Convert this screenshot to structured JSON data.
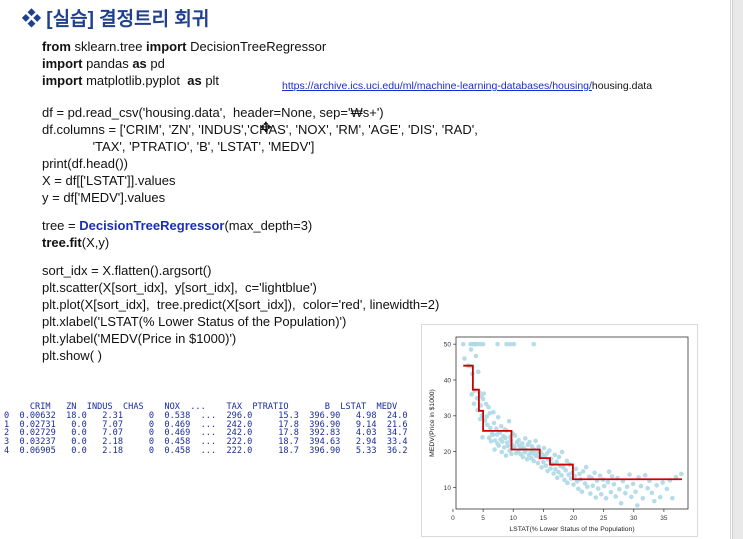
{
  "title": "❖ [실습] 결정트리 회귀",
  "code_lines": [
    {
      "segments": [
        {
          "t": "from",
          "k": "kw"
        },
        {
          "t": " sklearn.tree ",
          "k": ""
        },
        {
          "t": "import",
          "k": "kw"
        },
        {
          "t": " DecisionTreeRegressor",
          "k": ""
        }
      ]
    },
    {
      "segments": [
        {
          "t": "import",
          "k": "kw"
        },
        {
          "t": " pandas ",
          "k": ""
        },
        {
          "t": "as",
          "k": "kw"
        },
        {
          "t": " pd",
          "k": ""
        }
      ]
    },
    {
      "segments": [
        {
          "t": "import",
          "k": "kw"
        },
        {
          "t": " matplotlib.pyplot  ",
          "k": ""
        },
        {
          "t": "as",
          "k": "kw"
        },
        {
          "t": " plt",
          "k": ""
        }
      ]
    },
    {
      "segments": [
        {
          "t": "",
          "k": ""
        }
      ]
    },
    {
      "segments": [
        {
          "t": "df = pd.read_csv('housing.data',  header=None, sep='₩s+')",
          "k": ""
        }
      ]
    },
    {
      "segments": [
        {
          "t": "df.columns = ['CRIM', 'ZN', 'INDUS','CHAS', 'NOX', 'RM', 'AGE', 'DIS', 'RAD',",
          "k": ""
        }
      ]
    },
    {
      "segments": [
        {
          "t": "              'TAX', 'PTRATIO', 'B', 'LSTAT', 'MEDV']",
          "k": ""
        }
      ]
    },
    {
      "segments": [
        {
          "t": "print(df.head())",
          "k": ""
        }
      ]
    },
    {
      "segments": [
        {
          "t": "X = df[['LSTAT']].values",
          "k": ""
        }
      ]
    },
    {
      "segments": [
        {
          "t": "y = df['MEDV'].values",
          "k": ""
        }
      ]
    },
    {
      "segments": [
        {
          "t": "",
          "k": ""
        }
      ]
    },
    {
      "segments": [
        {
          "t": "tree = ",
          "k": ""
        },
        {
          "t": "DecisionTreeRegressor",
          "k": "hl"
        },
        {
          "t": "(max_depth=3)",
          "k": ""
        }
      ]
    },
    {
      "segments": [
        {
          "t": "tree.fit",
          "k": "kw"
        },
        {
          "t": "(X,y)",
          "k": ""
        }
      ]
    },
    {
      "segments": [
        {
          "t": "",
          "k": ""
        }
      ]
    },
    {
      "segments": [
        {
          "t": "sort_idx = X.flatten().argsort()",
          "k": ""
        }
      ]
    },
    {
      "segments": [
        {
          "t": "plt.scatter(X[sort_idx],  y[sort_idx],  c='lightblue')",
          "k": ""
        }
      ]
    },
    {
      "segments": [
        {
          "t": "plt.plot(X[sort_idx],  tree.predict(X[sort_idx]),  color='red', linewidth=2)",
          "k": ""
        }
      ]
    },
    {
      "segments": [
        {
          "t": "plt.xlabel('LSTAT(% Lower Status of the Population)')",
          "k": ""
        }
      ]
    },
    {
      "segments": [
        {
          "t": "plt.ylabel('MEDV(Price in $1000)')",
          "k": ""
        }
      ]
    },
    {
      "segments": [
        {
          "t": "plt.show( )",
          "k": ""
        }
      ]
    }
  ],
  "url": {
    "link": "https://archive.ics.uci.edu/ml/machine-learning-databases/housing/",
    "tail": "housing.data"
  },
  "df_head": {
    "header": "     CRIM   ZN  INDUS  CHAS    NOX  ...    TAX  PTRATIO       B  LSTAT  MEDV",
    "rows": [
      "0  0.00632  18.0   2.31     0  0.538  ...  296.0     15.3  396.90   4.98  24.0",
      "1  0.02731   0.0   7.07     0  0.469  ...  242.0     17.8  396.90   9.14  21.6",
      "2  0.02729   0.0   7.07     0  0.469  ...  242.0     17.8  392.83   4.03  34.7",
      "3  0.03237   0.0   2.18     0  0.458  ...  222.0     18.7  394.63   2.94  33.4",
      "4  0.06905   0.0   2.18     0  0.458  ...  222.0     18.7  396.90   5.33  36.2"
    ]
  },
  "chart_data": {
    "type": "scatter",
    "xlabel": "LSTAT(% Lower Status of the Population)",
    "ylabel": "MEDV(Price in $1000)",
    "xlim": [
      0.5,
      39
    ],
    "ylim": [
      4,
      52
    ],
    "xticks": [
      0,
      5,
      10,
      15,
      20,
      25,
      30,
      35
    ],
    "yticks": [
      10,
      20,
      30,
      40,
      50
    ],
    "grid": false,
    "scatter_color": "#add8e6",
    "line_color": "#cc0000",
    "scatter_series": {
      "points": [
        [
          1.7,
          50
        ],
        [
          2.9,
          50
        ],
        [
          3.3,
          50
        ],
        [
          3.5,
          50
        ],
        [
          3.7,
          50
        ],
        [
          4.0,
          50
        ],
        [
          4.5,
          50
        ],
        [
          5.0,
          50
        ],
        [
          7.4,
          50
        ],
        [
          8.9,
          50
        ],
        [
          9.5,
          50
        ],
        [
          10.1,
          50
        ],
        [
          13.4,
          50
        ],
        [
          1.9,
          46
        ],
        [
          2.5,
          44
        ],
        [
          2.9,
          43.8
        ],
        [
          3.0,
          48.5
        ],
        [
          3.1,
          36
        ],
        [
          3.2,
          41.7
        ],
        [
          3.5,
          33.4
        ],
        [
          3.6,
          37
        ],
        [
          3.8,
          46.7
        ],
        [
          4.0,
          34.9
        ],
        [
          4.1,
          31.6
        ],
        [
          4.2,
          42.3
        ],
        [
          4.4,
          36.5
        ],
        [
          4.5,
          29.1
        ],
        [
          4.6,
          32.9
        ],
        [
          4.7,
          35.4
        ],
        [
          4.8,
          30.1
        ],
        [
          4.9,
          24
        ],
        [
          5.0,
          34.7
        ],
        [
          5.1,
          36.2
        ],
        [
          5.3,
          28.7
        ],
        [
          5.5,
          33.3
        ],
        [
          5.6,
          29.8
        ],
        [
          5.7,
          27.5
        ],
        [
          5.9,
          32.4
        ],
        [
          6.0,
          23.9
        ],
        [
          6.1,
          30.7
        ],
        [
          6.2,
          26.6
        ],
        [
          6.3,
          22.9
        ],
        [
          6.5,
          25
        ],
        [
          6.6,
          24.7
        ],
        [
          6.7,
          31
        ],
        [
          6.8,
          28
        ],
        [
          6.9,
          20.6
        ],
        [
          7.0,
          23.1
        ],
        [
          7.2,
          26.4
        ],
        [
          7.3,
          24.8
        ],
        [
          7.4,
          22.2
        ],
        [
          7.5,
          29.6
        ],
        [
          7.6,
          21.7
        ],
        [
          7.8,
          25.3
        ],
        [
          7.9,
          23.4
        ],
        [
          8.0,
          27.1
        ],
        [
          8.1,
          19.9
        ],
        [
          8.2,
          22.8
        ],
        [
          8.4,
          24.3
        ],
        [
          8.5,
          21.2
        ],
        [
          8.6,
          26.2
        ],
        [
          8.7,
          23.8
        ],
        [
          8.8,
          18.9
        ],
        [
          8.9,
          25.9
        ],
        [
          9.0,
          22.5
        ],
        [
          9.1,
          21.6
        ],
        [
          9.3,
          28.5
        ],
        [
          9.4,
          20.3
        ],
        [
          9.5,
          24.1
        ],
        [
          9.6,
          23.1
        ],
        [
          9.7,
          19.4
        ],
        [
          9.8,
          22
        ],
        [
          9.9,
          25.1
        ],
        [
          10.0,
          20.9
        ],
        [
          10.2,
          21.4
        ],
        [
          10.3,
          24.5
        ],
        [
          10.5,
          19.6
        ],
        [
          10.6,
          22.6
        ],
        [
          10.8,
          20.2
        ],
        [
          10.9,
          23.2
        ],
        [
          11.0,
          21.7
        ],
        [
          11.2,
          19.3
        ],
        [
          11.3,
          20.8
        ],
        [
          11.5,
          22.3
        ],
        [
          11.6,
          18.5
        ],
        [
          11.7,
          21.1
        ],
        [
          11.9,
          19.8
        ],
        [
          12.0,
          23.7
        ],
        [
          12.1,
          20.4
        ],
        [
          12.3,
          17.9
        ],
        [
          12.4,
          21.9
        ],
        [
          12.6,
          19.1
        ],
        [
          12.7,
          22.7
        ],
        [
          12.9,
          20
        ],
        [
          13.0,
          18.2
        ],
        [
          13.1,
          21.5
        ],
        [
          13.3,
          19.5
        ],
        [
          13.4,
          17.4
        ],
        [
          13.5,
          20.6
        ],
        [
          13.7,
          23
        ],
        [
          13.8,
          18.8
        ],
        [
          14.0,
          19.8
        ],
        [
          14.1,
          16.8
        ],
        [
          14.2,
          21.4
        ],
        [
          14.4,
          18.4
        ],
        [
          14.5,
          20
        ],
        [
          14.7,
          15.6
        ],
        [
          14.8,
          19.2
        ],
        [
          15.0,
          17.1
        ],
        [
          15.1,
          21
        ],
        [
          15.2,
          18.6
        ],
        [
          15.4,
          16.1
        ],
        [
          15.6,
          19.5
        ],
        [
          15.7,
          14.6
        ],
        [
          15.8,
          17.8
        ],
        [
          16.0,
          20.3
        ],
        [
          16.2,
          15.3
        ],
        [
          16.3,
          18
        ],
        [
          16.5,
          16.6
        ],
        [
          16.7,
          13.9
        ],
        [
          16.9,
          19.1
        ],
        [
          17.0,
          15.1
        ],
        [
          17.2,
          17.2
        ],
        [
          17.3,
          12.7
        ],
        [
          17.5,
          14.3
        ],
        [
          17.6,
          18.5
        ],
        [
          17.8,
          16
        ],
        [
          18.0,
          13.4
        ],
        [
          18.1,
          19.9
        ],
        [
          18.3,
          15.6
        ],
        [
          18.5,
          12.1
        ],
        [
          18.7,
          14.8
        ],
        [
          18.9,
          17.4
        ],
        [
          19.0,
          11.3
        ],
        [
          19.2,
          13.6
        ],
        [
          19.4,
          16.4
        ],
        [
          19.6,
          12.5
        ],
        [
          19.8,
          14.1
        ],
        [
          20.0,
          10.8
        ],
        [
          20.2,
          13.2
        ],
        [
          20.4,
          15.2
        ],
        [
          20.6,
          11.7
        ],
        [
          20.8,
          9.6
        ],
        [
          21.0,
          13.8
        ],
        [
          21.2,
          12.3
        ],
        [
          21.4,
          8.8
        ],
        [
          21.6,
          14.5
        ],
        [
          21.9,
          11.1
        ],
        [
          22.1,
          15.7
        ],
        [
          22.3,
          10.2
        ],
        [
          22.6,
          13
        ],
        [
          22.8,
          8.3
        ],
        [
          23.0,
          12.7
        ],
        [
          23.2,
          10.5
        ],
        [
          23.5,
          14.1
        ],
        [
          23.7,
          7.2
        ],
        [
          23.9,
          11.9
        ],
        [
          24.1,
          9.7
        ],
        [
          24.4,
          13.3
        ],
        [
          24.6,
          8.1
        ],
        [
          24.9,
          12.2
        ],
        [
          25.1,
          10.4
        ],
        [
          25.4,
          7
        ],
        [
          25.7,
          11.5
        ],
        [
          25.9,
          14.4
        ],
        [
          26.2,
          8.7
        ],
        [
          26.4,
          13.1
        ],
        [
          26.7,
          10.9
        ],
        [
          27.0,
          7.5
        ],
        [
          27.3,
          12.6
        ],
        [
          27.6,
          9.5
        ],
        [
          27.9,
          5.6
        ],
        [
          28.2,
          11.8
        ],
        [
          28.6,
          8.4
        ],
        [
          28.9,
          10.2
        ],
        [
          29.3,
          13.6
        ],
        [
          29.6,
          7.4
        ],
        [
          29.9,
          11
        ],
        [
          30.3,
          8.8
        ],
        [
          30.6,
          5
        ],
        [
          30.8,
          12.8
        ],
        [
          31.2,
          10.4
        ],
        [
          31.5,
          7
        ],
        [
          31.9,
          13.4
        ],
        [
          32.3,
          9.8
        ],
        [
          32.6,
          11.9
        ],
        [
          33.0,
          8.5
        ],
        [
          33.4,
          6.2
        ],
        [
          33.8,
          10.6
        ],
        [
          34.4,
          7.3
        ],
        [
          34.8,
          11.4
        ],
        [
          35.5,
          9.6
        ],
        [
          36.0,
          12
        ],
        [
          36.4,
          7
        ],
        [
          37.0,
          12.9
        ],
        [
          37.9,
          13.8
        ]
      ]
    },
    "line_series": {
      "steps": [
        {
          "x": [
            1.7,
            3.3
          ],
          "y": 44.0
        },
        {
          "x": [
            3.3,
            4.3
          ],
          "y": 37.3
        },
        {
          "x": [
            4.3,
            5.0
          ],
          "y": 31.4
        },
        {
          "x": [
            5.0,
            9.7
          ],
          "y": 25.8
        },
        {
          "x": [
            9.7,
            14.4
          ],
          "y": 20.6
        },
        {
          "x": [
            14.4,
            16.1
          ],
          "y": 18.2
        },
        {
          "x": [
            16.1,
            19.9
          ],
          "y": 16.4
        },
        {
          "x": [
            19.9,
            38.0
          ],
          "y": 12.3
        }
      ]
    }
  }
}
